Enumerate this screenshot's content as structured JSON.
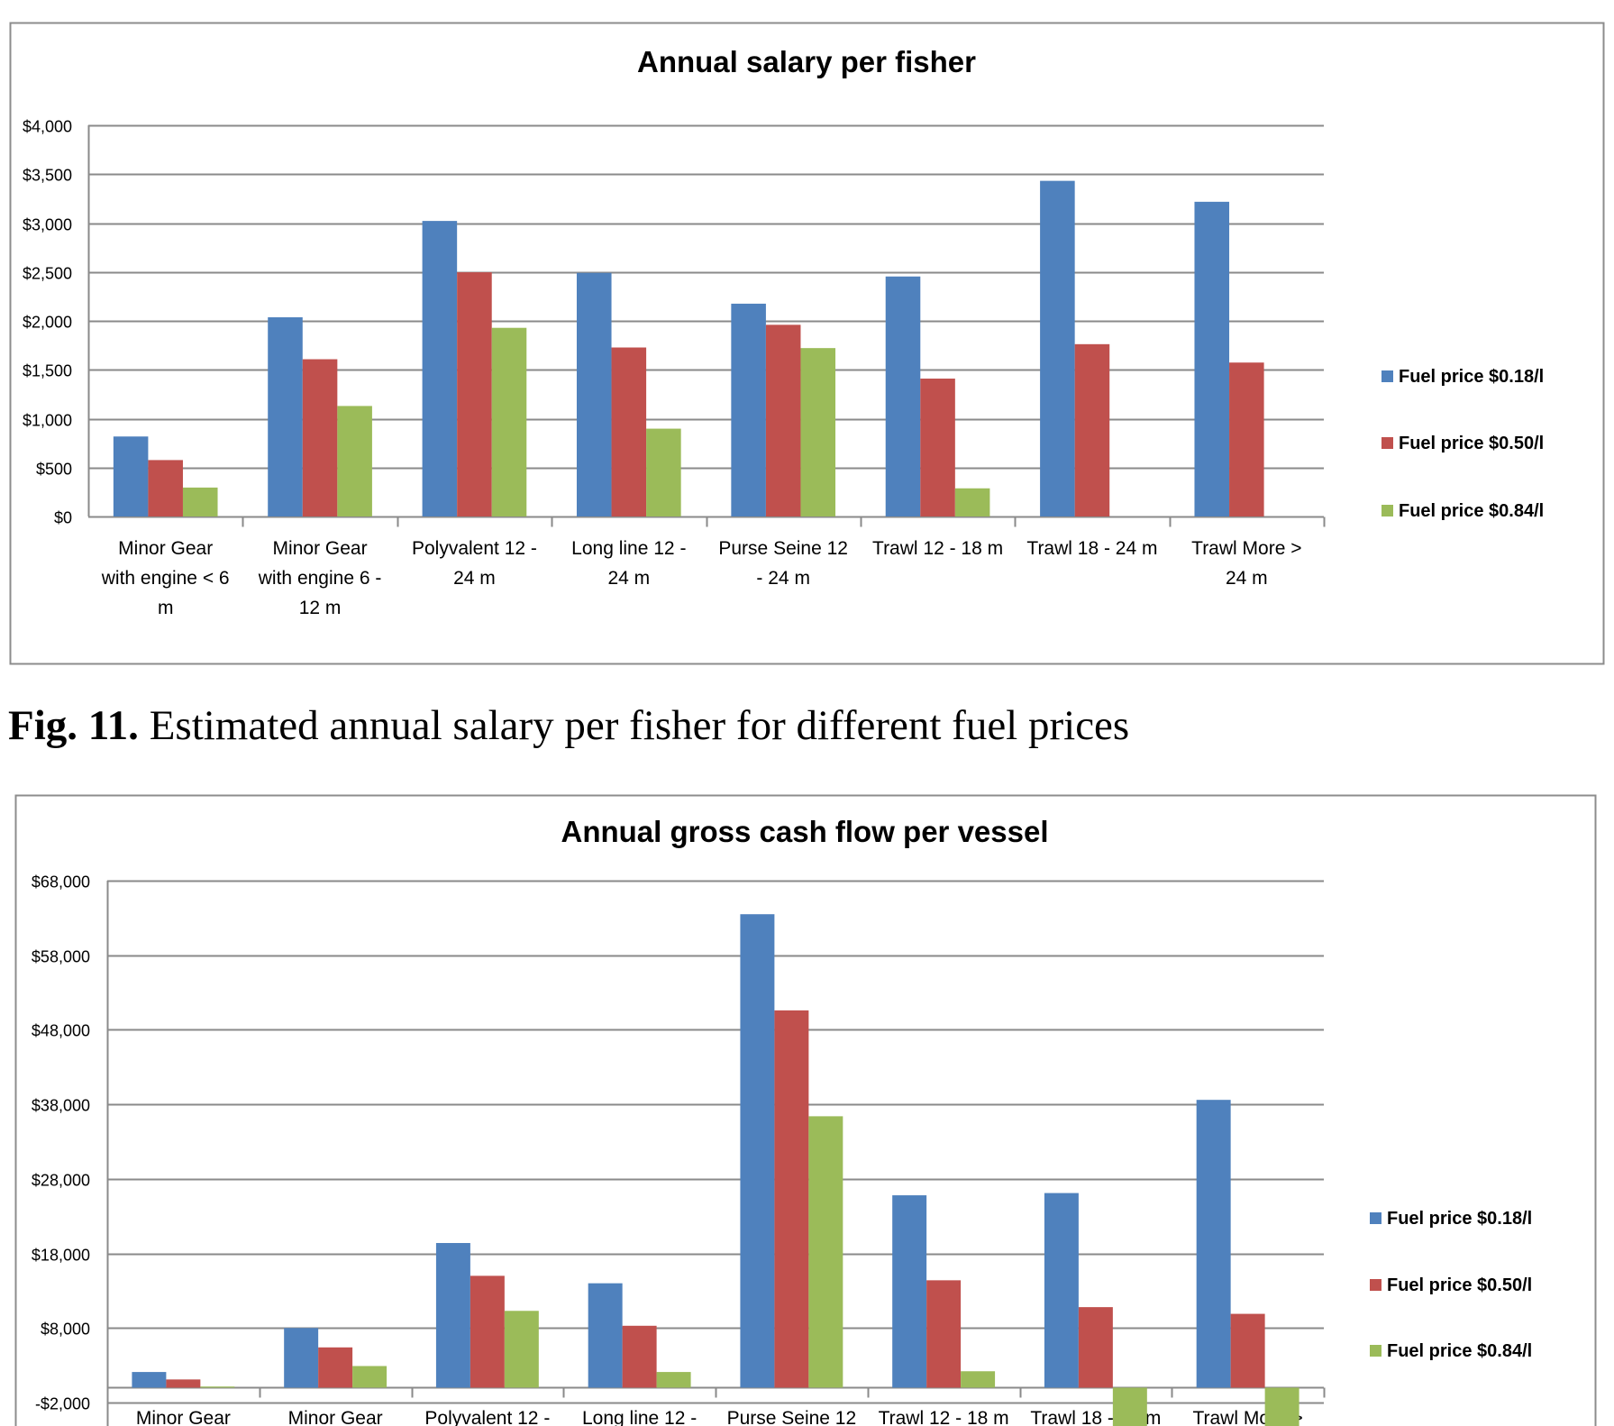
{
  "figure_caption": {
    "label": "Fig. 11.",
    "text": " Estimated annual salary per fisher for different fuel prices"
  },
  "chart_data": [
    {
      "type": "bar",
      "title": "Annual salary per fisher",
      "xlabel": "",
      "ylabel": "",
      "ylim": [
        0,
        4000
      ],
      "yticks": [
        0,
        500,
        1000,
        1500,
        2000,
        2500,
        3000,
        3500,
        4000
      ],
      "ytick_labels": [
        "$0",
        "$500",
        "$1,000",
        "$1,500",
        "$2,000",
        "$2,500",
        "$3,000",
        "$3,500",
        "$4,000"
      ],
      "grid": true,
      "legend_position": "right",
      "categories": [
        "Minor Gear with engine < 6 m",
        "Minor Gear with engine 6 - 12 m",
        "Polyvalent 12 - 24 m",
        "Long line 12 - 24 m",
        "Purse Seine 12 - 24 m",
        "Trawl 12 - 18 m",
        "Trawl 18 - 24 m",
        "Trawl More > 24 m"
      ],
      "category_label_lines": [
        [
          "Minor Gear",
          "with engine < 6",
          "m"
        ],
        [
          "Minor Gear",
          "with engine 6 -",
          "12 m"
        ],
        [
          "Polyvalent 12 -",
          "24 m"
        ],
        [
          "Long line 12 -",
          "24 m"
        ],
        [
          "Purse Seine 12",
          "- 24 m"
        ],
        [
          "Trawl 12 - 18 m"
        ],
        [
          "Trawl 18 - 24 m"
        ],
        [
          "Trawl More >",
          "24 m"
        ]
      ],
      "series": [
        {
          "name": "Fuel price $0.18/l",
          "color": "#4F81BD",
          "values": [
            818,
            2037,
            3022,
            2491,
            2176,
            2454,
            3432,
            3218
          ]
        },
        {
          "name": "Fuel price $0.50/l",
          "color": "#C0504D",
          "values": [
            577,
            1608,
            2497,
            1728,
            1960,
            1410,
            1762,
            1574
          ]
        },
        {
          "name": "Fuel price $0.84/l",
          "color": "#9BBB59",
          "values": [
            296,
            1130,
            1929,
            898,
            1722,
            288,
            0,
            0
          ]
        }
      ]
    },
    {
      "type": "bar",
      "title": "Annual gross cash flow per vessel",
      "xlabel": "",
      "ylabel": "",
      "ylim": [
        -2000,
        68000
      ],
      "yticks": [
        -2000,
        8000,
        18000,
        28000,
        38000,
        48000,
        58000,
        68000
      ],
      "ytick_labels": [
        "-$2,000",
        "$8,000",
        "$18,000",
        "$28,000",
        "$38,000",
        "$48,000",
        "$58,000",
        "$68,000"
      ],
      "grid": true,
      "legend_position": "right",
      "categories": [
        "Minor Gear",
        "Minor Gear",
        "Polyvalent 12 -",
        "Long line 12 -",
        "Purse Seine 12",
        "Trawl 12 - 18 m",
        "Trawl 18 - 24 m",
        "Trawl More >"
      ],
      "category_label_lines": [
        [
          "Minor Gear"
        ],
        [
          "Minor Gear"
        ],
        [
          "Polyvalent 12 -"
        ],
        [
          "Long line 12 -"
        ],
        [
          "Purse Seine 12"
        ],
        [
          "Trawl 12 - 18 m"
        ],
        [
          "Trawl 18 - 24 m"
        ],
        [
          "Trawl More >"
        ]
      ],
      "series": [
        {
          "name": "Fuel price $0.18/l",
          "color": "#4F81BD",
          "values": [
            2100,
            8000,
            19400,
            14000,
            63500,
            25800,
            26100,
            38600
          ]
        },
        {
          "name": "Fuel price $0.50/l",
          "color": "#C0504D",
          "values": [
            1100,
            5400,
            15000,
            8300,
            50600,
            14400,
            10800,
            9900
          ]
        },
        {
          "name": "Fuel price $0.84/l",
          "color": "#9BBB59",
          "values": [
            150,
            2900,
            10300,
            2100,
            36400,
            2200,
            -6000,
            -6000
          ]
        }
      ]
    }
  ]
}
